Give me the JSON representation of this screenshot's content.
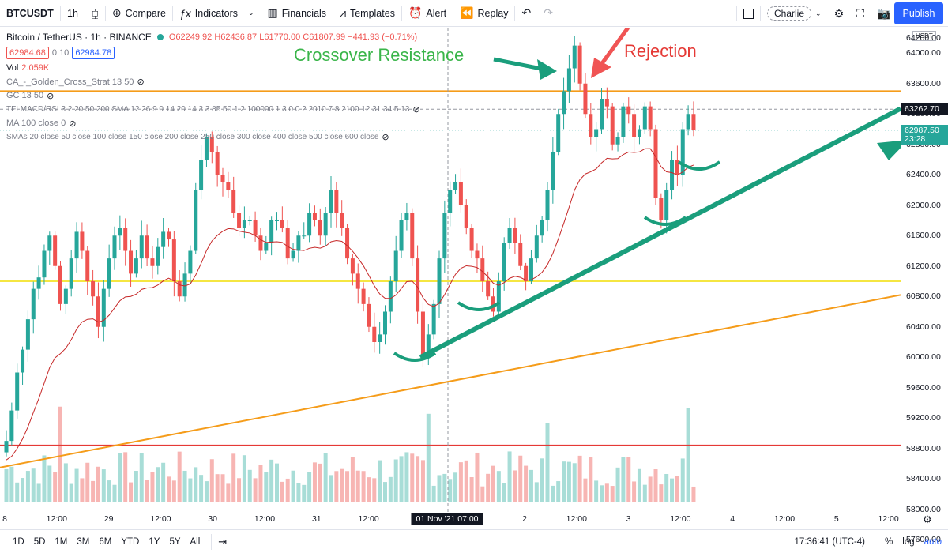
{
  "toolbar": {
    "symbol": "BTCUSDT",
    "interval": "1h",
    "compare": "Compare",
    "indicators": "Indicators",
    "financials": "Financials",
    "templates": "Templates",
    "alert": "Alert",
    "replay": "Replay",
    "user": "Charlie",
    "publish": "Publish"
  },
  "legend": {
    "title": "Bitcoin / TetherUS · 1h · BINANCE",
    "ohlc": "O62249.92 H62436.87 L61770.00 C61807.99 −441.93 (−0.71%)",
    "bid": "62984.68",
    "ask": "62984.78",
    "vol_label": "Vol",
    "vol_value": "2.059K",
    "indicators": [
      "CA_-_Golden_Cross_Strat 13 50",
      "GC 13 50",
      "TFI MACD/RSI 3 2 20 50 200 SMA 12 26 9 0 14 20 14 3 3 85 50 1 2 100000 1 3 0 0 2 2010 7 8 2100 12 31 34 5 13",
      "MA 100 close 0",
      "SMAs 20 close 50 close 100 close 150 close 200 close 250 close 300 close 400 close 500 close 600 close"
    ]
  },
  "annotations": {
    "crossover": "Crossover Resistance",
    "rejection": "Rejection"
  },
  "price_axis": {
    "currency": "USDT",
    "ticks": [
      "64200.00",
      "64000.00",
      "63600.00",
      "63200.00",
      "62800.00",
      "62400.00",
      "62000.00",
      "61600.00",
      "61200.00",
      "60800.00",
      "60400.00",
      "60000.00",
      "59600.00",
      "59200.00",
      "58800.00",
      "58400.00",
      "58000.00",
      "57600.00"
    ],
    "cursor_price": "63262.70",
    "last_price": "62987.50",
    "countdown": "23:28"
  },
  "time_axis": {
    "ticks": [
      "8",
      "12:00",
      "29",
      "12:00",
      "30",
      "12:00",
      "31",
      "12:00",
      "N",
      "12:00",
      "2",
      "12:00",
      "3",
      "12:00",
      "4",
      "12:00",
      "5",
      "12:00"
    ],
    "cursor_label": "01 Nov '21  07:00"
  },
  "bottom": {
    "ranges": [
      "1D",
      "5D",
      "1M",
      "3M",
      "6M",
      "YTD",
      "1Y",
      "5Y",
      "All"
    ],
    "clock": "17:36:41 (UTC-4)",
    "percent": "%",
    "log": "log",
    "auto": "auto"
  },
  "colors": {
    "up": "#26a69a",
    "down": "#ef5350",
    "accent": "#2962ff",
    "orange_line": "#f59c1a",
    "yellow_line": "#f5e642",
    "red_line": "#e53935",
    "trend_arrow": "#1a9e7c"
  },
  "chart_data": {
    "type": "candlestick",
    "price_range": [
      57450,
      64300
    ],
    "horizontal_levels": [
      {
        "price": 63500,
        "color": "orange"
      },
      {
        "price": 61000,
        "color": "yellow"
      },
      {
        "price": 58840,
        "color": "red"
      }
    ],
    "closes": [
      58900,
      59300,
      59800,
      60100,
      60500,
      60900,
      61050,
      61400,
      61600,
      61200,
      60700,
      60900,
      61300,
      61650,
      61400,
      61000,
      60800,
      60400,
      60900,
      61300,
      61600,
      61700,
      61400,
      61100,
      61300,
      61600,
      61300,
      61200,
      61450,
      61650,
      61550,
      61000,
      60800,
      61100,
      61400,
      62200,
      62600,
      62900,
      62700,
      62400,
      62300,
      62200,
      61900,
      61700,
      61800,
      61800,
      61600,
      61400,
      61500,
      61800,
      61800,
      61700,
      61300,
      61400,
      61600,
      61600,
      61900,
      61800,
      61600,
      61900,
      62200,
      61900,
      61700,
      61300,
      61100,
      60900,
      60700,
      60400,
      60200,
      60300,
      60600,
      61000,
      61400,
      61800,
      61900,
      61300,
      60600,
      60000,
      60300,
      60700,
      61300,
      61900,
      62200,
      62300,
      62000,
      61700,
      61400,
      61300,
      61000,
      60800,
      60600,
      61000,
      61500,
      61700,
      61500,
      61200,
      61000,
      61300,
      61600,
      61800,
      62200,
      62700,
      63200,
      63500,
      63800,
      64100,
      63600,
      63200,
      62900,
      63000,
      63400,
      63300,
      62800,
      62900,
      63300,
      63200,
      62900,
      63000,
      63300,
      63000,
      62100,
      61800,
      62200,
      62600,
      62400,
      63000,
      63200,
      62990
    ]
  }
}
